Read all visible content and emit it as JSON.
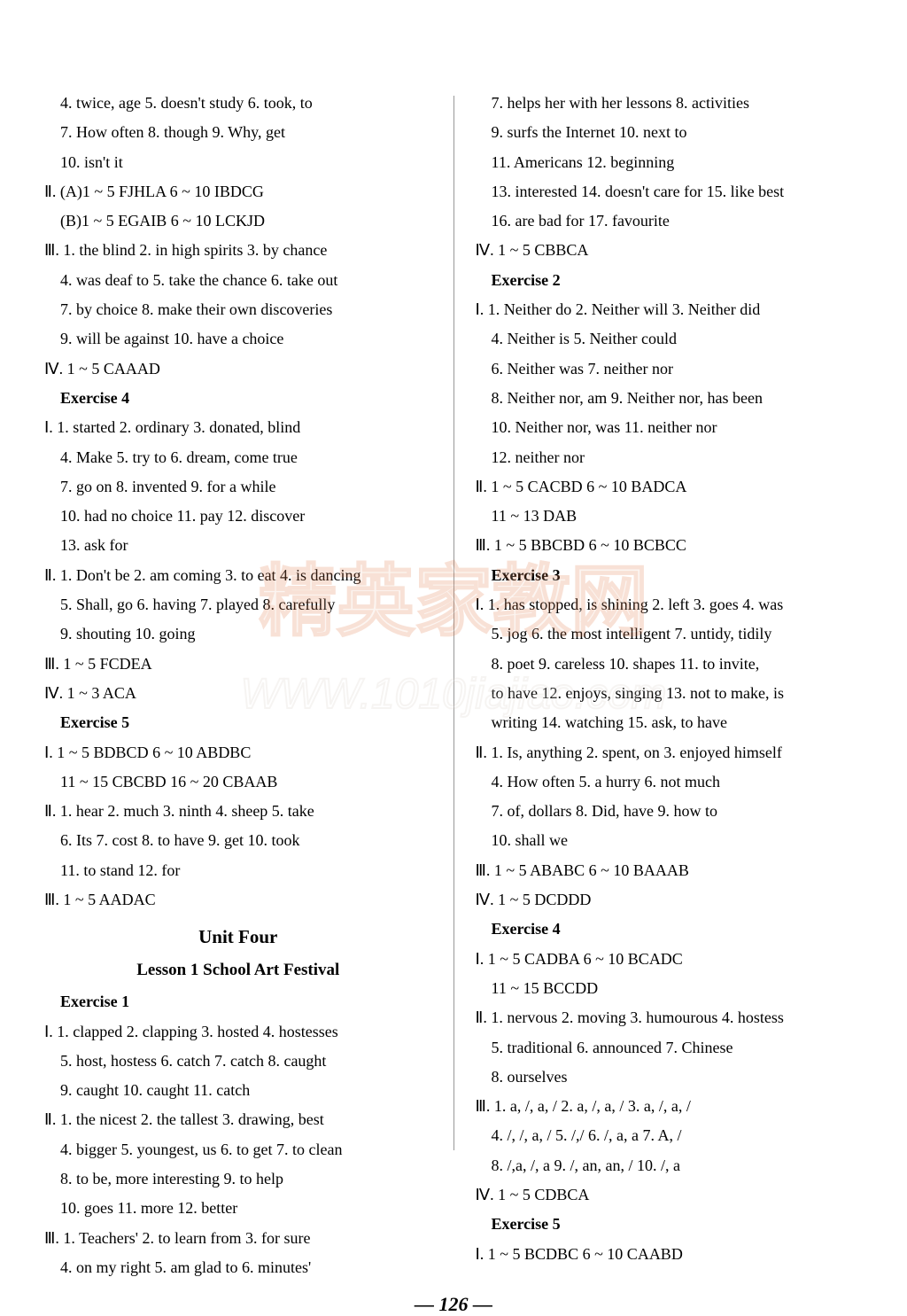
{
  "page": {
    "number": "— 126 —",
    "text_color": "#000000",
    "bg_color": "#ffffff",
    "watermark": {
      "text_cn": "精英家教网",
      "url": "WWW.1010jiajiao.com",
      "fill": "#f4d6c4",
      "stroke": "#e37a49"
    }
  },
  "left": {
    "l1": "4. twice, age   5. doesn't study   6. took, to",
    "l2": "7. How often   8. though   9. Why, get",
    "l3": "10. isn't it",
    "l4": "Ⅱ. (A)1 ~ 5   FJHLA   6 ~ 10   IBDCG",
    "l5": "(B)1 ~ 5 EGAIB   6 ~ 10   LCKJD",
    "l6": "Ⅲ. 1. the blind   2. in high spirits   3. by chance",
    "l7": "4. was deaf to   5. take the chance   6. take out",
    "l8": "7. by choice   8. make their own discoveries",
    "l9": "9. will be against   10. have a choice",
    "l10": "Ⅳ. 1 ~ 5   CAAAD",
    "ex4": "Exercise 4",
    "l11": "Ⅰ. 1. started   2. ordinary   3. donated, blind",
    "l12": "4. Make   5. try to   6. dream, come true",
    "l13": "7. go on   8. invented   9. for a while",
    "l14": "10. had no choice   11. pay   12. discover",
    "l15": "13. ask for",
    "l16": "Ⅱ. 1. Don't be   2. am coming   3. to eat   4. is dancing",
    "l17": "5. Shall, go   6. having   7. played   8. carefully",
    "l18": "9. shouting   10. going",
    "l19": "Ⅲ. 1 ~ 5   FCDEA",
    "l20": "Ⅳ. 1 ~ 3   ACA",
    "ex5": "Exercise 5",
    "l21": "Ⅰ. 1 ~ 5   BDBCD   6 ~ 10   ABDBC",
    "l22": "11 ~ 15   CBCBD   16 ~ 20   CBAAB",
    "l23": "Ⅱ. 1. hear   2. much   3. ninth   4. sheep   5. take",
    "l24": "6. Its   7. cost   8. to have   9. get   10. took",
    "l25": "11. to stand   12. for",
    "l26": "Ⅲ. 1 ~ 5   AADAC",
    "unit": "Unit Four",
    "lesson": "Lesson 1   School Art Festival",
    "ex1": "Exercise 1",
    "l27": "Ⅰ. 1. clapped   2. clapping   3. hosted   4. hostesses",
    "l28": "5. host, hostess   6. catch   7. catch   8. caught",
    "l29": "9. caught   10. caught   11. catch",
    "l30": "Ⅱ. 1. the nicest   2. the tallest   3. drawing, best",
    "l31": "4. bigger   5. youngest, us   6. to get   7. to clean",
    "l32": "8. to be, more interesting   9. to help",
    "l33": "10. goes   11. more   12. better",
    "l34": "Ⅲ. 1. Teachers'   2. to learn from   3. for sure",
    "l35": "4. on my right   5. am glad to   6. minutes'"
  },
  "right": {
    "r1": "7. helps her with her lessons   8. activities",
    "r2": "9. surfs the Internet   10. next to",
    "r3": "11. Americans   12. beginning",
    "r4": "13. interested   14. doesn't care for   15. like best",
    "r5": "16. are bad for   17. favourite",
    "r6": "Ⅳ. 1 ~ 5   CBBCA",
    "ex2": "Exercise 2",
    "r7": "Ⅰ. 1. Neither do   2. Neither will   3. Neither did",
    "r8": "4. Neither is   5. Neither could",
    "r9": "6. Neither was   7. neither nor",
    "r10": "8. Neither nor, am   9. Neither nor, has been",
    "r11": "10. Neither nor, was   11. neither nor",
    "r12": "12. neither nor",
    "r13": "Ⅱ. 1 ~ 5   CACBD   6 ~ 10   BADCA",
    "r14": "11 ~ 13   DAB",
    "r15": "Ⅲ. 1 ~ 5   BBCBD   6 ~ 10   BCBCC",
    "ex3": "Exercise 3",
    "r16": "Ⅰ. 1. has stopped, is shining   2. left   3. goes   4. was",
    "r17": "5. jog   6. the most intelligent   7. untidy, tidily",
    "r18": "8. poet   9. careless   10. shapes   11. to invite,",
    "r19": "to have   12. enjoys, singing   13. not to make, is",
    "r20": "writing   14. watching   15. ask, to have",
    "r21": "Ⅱ. 1. Is, anything   2. spent, on   3. enjoyed himself",
    "r22": "4. How often   5. a hurry   6. not much",
    "r23": "7. of, dollars   8. Did, have   9. how to",
    "r24": "10. shall we",
    "r25": "Ⅲ. 1 ~ 5   ABABC   6 ~ 10   BAAAB",
    "r26": "Ⅳ. 1 ~ 5   DCDDD",
    "ex4r": "Exercise 4",
    "r27": "Ⅰ. 1 ~ 5   CADBA   6 ~ 10   BCADC",
    "r28": "11 ~ 15   BCCDD",
    "r29": "Ⅱ. 1. nervous   2. moving   3. humourous   4. hostess",
    "r30": "5. traditional   6. announced   7. Chinese",
    "r31": "8. ourselves",
    "r32": "Ⅲ. 1. a, /, a, /   2. a, /, a, /   3. a, /, a, /",
    "r33": "4. /, /, a, /   5. /,/   6. /, a, a   7. A, /",
    "r34": "8. /,a, /, a   9. /, an, an, /   10. /, a",
    "r35": "Ⅳ. 1 ~ 5   CDBCA",
    "ex5r": "Exercise 5",
    "r36": "Ⅰ. 1 ~ 5   BCDBC   6 ~ 10   CAABD"
  }
}
